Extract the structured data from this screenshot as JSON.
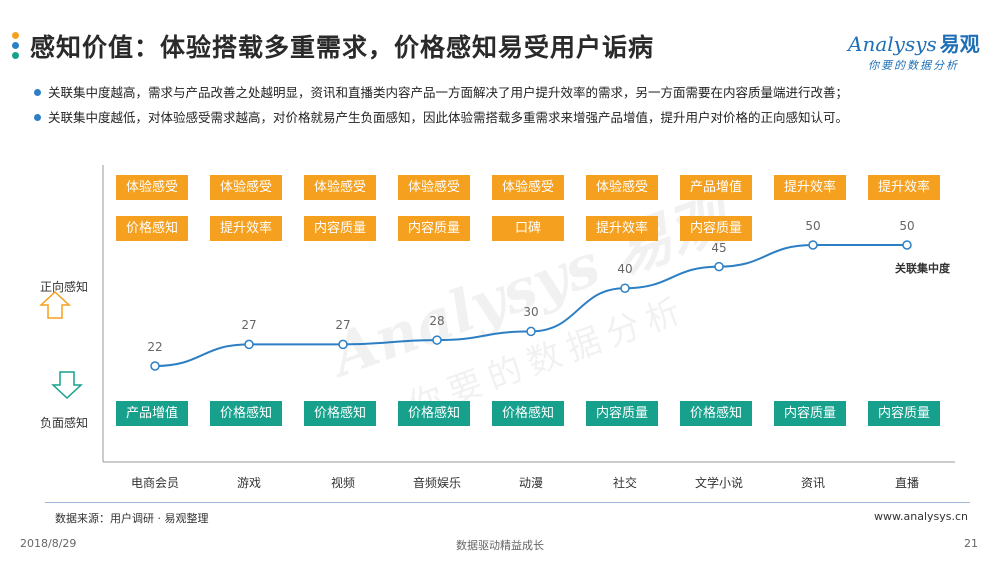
{
  "header": {
    "title": "感知价值：体验搭载多重需求，价格感知易受用户诟病",
    "dot_colors": [
      "#f5a01e",
      "#2c7fc4",
      "#17a08c"
    ]
  },
  "logo": {
    "brand": "nalysys",
    "brand_initial": "A",
    "brand_cn": "易观",
    "slogan": "你要的数据分析"
  },
  "bullets": [
    "关联集中度越高，需求与产品改善之处越明显，资讯和直播类内容产品一方面解决了用户提升效率的需求，另一方面需要在内容质量端进行改善；",
    "关联集中度越低，对体验感受需求越高，对价格就易产生负面感知，因此体验需搭载多重需求来增强产品增值，提升用户对价格的正向感知认可。"
  ],
  "side": {
    "positive": "正向感知",
    "negative": "负面感知"
  },
  "colors": {
    "line": "#2c7fc4",
    "orange": "#f5a01e",
    "teal": "#17a08c"
  },
  "chart_data": {
    "type": "line",
    "categories": [
      "电商会员",
      "游戏",
      "视频",
      "音频娱乐",
      "动漫",
      "社交",
      "文学小说",
      "资讯",
      "直播"
    ],
    "series": [
      {
        "name": "关联集中度",
        "values": [
          22,
          27,
          27,
          28,
          30,
          40,
          45,
          50,
          50
        ]
      }
    ],
    "ylim": [
      0,
      60
    ],
    "positive_row1": [
      "体验感受",
      "体验感受",
      "体验感受",
      "体验感受",
      "体验感受",
      "体验感受",
      "产品增值",
      "提升效率",
      "提升效率"
    ],
    "positive_row2": [
      "价格感知",
      "提升效率",
      "内容质量",
      "内容质量",
      "口碑",
      "提升效率",
      "内容质量",
      "",
      ""
    ],
    "negative": [
      "产品增值",
      "价格感知",
      "价格感知",
      "价格感知",
      "价格感知",
      "内容质量",
      "价格感知",
      "内容质量",
      "内容质量"
    ]
  },
  "footer": {
    "source": "数据来源：用户调研 · 易观整理",
    "url": "www.analysys.cn",
    "date": "2018/8/29",
    "slogan": "数据驱动精益成长",
    "page": "21"
  }
}
